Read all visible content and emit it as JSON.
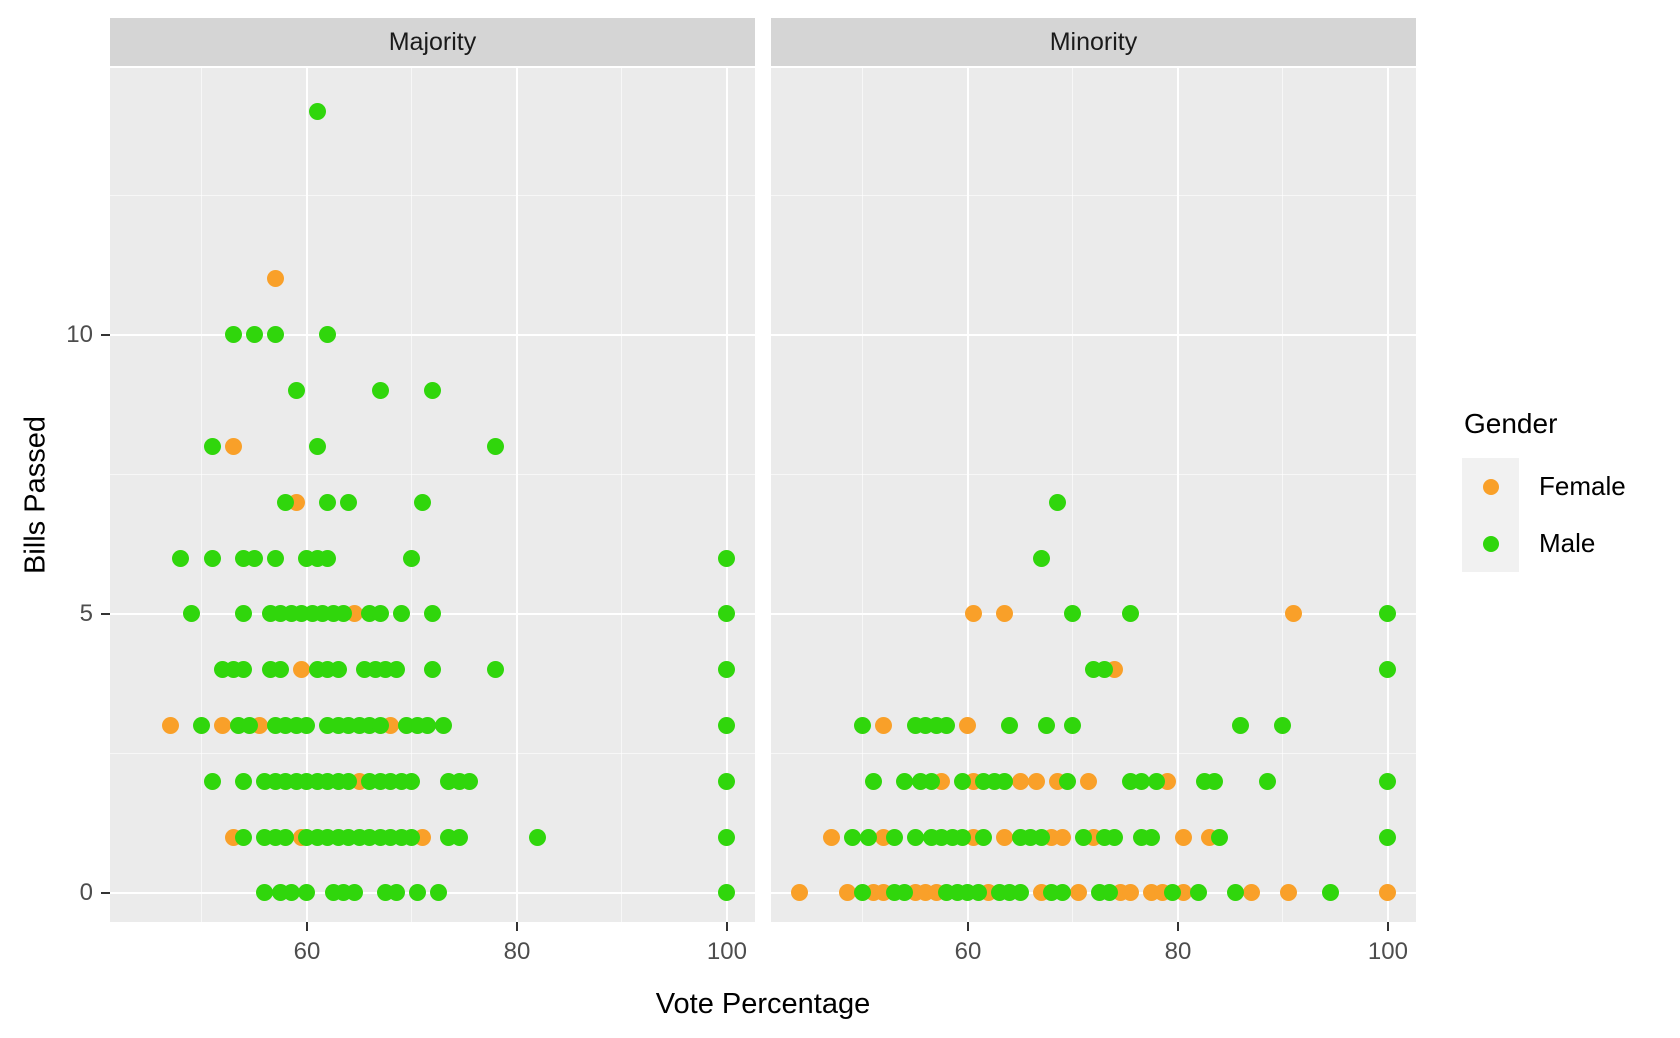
{
  "figure": {
    "x_axis_title": "Vote Percentage",
    "y_axis_title": "Bills Passed",
    "facets": [
      "Majority",
      "Minority"
    ],
    "legend": {
      "title": "Gender",
      "entries": [
        {
          "label": "Female",
          "color": "#f9a029"
        },
        {
          "label": "Male",
          "color": "#30d60c"
        }
      ]
    },
    "colors": {
      "panel_background": "#ebebeb",
      "strip_background": "#d5d5d5",
      "gridline": "#ffffff",
      "axis_text": "#4d4d4d"
    }
  },
  "chart_data": {
    "type": "scatter",
    "title": "",
    "xlabel": "Vote Percentage",
    "ylabel": "Bills Passed",
    "facet_labels": [
      "Majority",
      "Minority"
    ],
    "legend_title": "Gender",
    "legend_position": "right",
    "grid": true,
    "xlim": [
      41.24,
      102.67
    ],
    "ylim": [
      -0.52,
      14.78
    ],
    "x_breaks": [
      60,
      80,
      100
    ],
    "x_minor_breaks": [
      50,
      70,
      90
    ],
    "y_breaks": [
      0,
      5,
      10
    ],
    "y_minor_breaks": [
      2.5,
      7.5,
      12.5
    ],
    "series": [
      {
        "facet": "Majority",
        "gender": "Female",
        "points": [
          [
            57,
            11
          ],
          [
            53,
            8
          ],
          [
            59,
            7
          ],
          [
            64.5,
            5
          ],
          [
            59.5,
            4
          ],
          [
            47,
            3
          ],
          [
            52,
            3
          ],
          [
            55.5,
            3
          ],
          [
            68,
            3
          ],
          [
            65,
            2
          ],
          [
            53,
            1
          ],
          [
            59.5,
            1
          ],
          [
            71,
            1
          ]
        ]
      },
      {
        "facet": "Majority",
        "gender": "Male",
        "points": [
          [
            61,
            14
          ],
          [
            53,
            10
          ],
          [
            55,
            10
          ],
          [
            57,
            10
          ],
          [
            62,
            10
          ],
          [
            59,
            9
          ],
          [
            67,
            9
          ],
          [
            72,
            9
          ],
          [
            51,
            8
          ],
          [
            61,
            8
          ],
          [
            78,
            8
          ],
          [
            58,
            7
          ],
          [
            62,
            7
          ],
          [
            64,
            7
          ],
          [
            71,
            7
          ],
          [
            48,
            6
          ],
          [
            51,
            6
          ],
          [
            54,
            6
          ],
          [
            55,
            6
          ],
          [
            57,
            6
          ],
          [
            60,
            6
          ],
          [
            61,
            6
          ],
          [
            62,
            6
          ],
          [
            70,
            6
          ],
          [
            100,
            6
          ],
          [
            49,
            5
          ],
          [
            54,
            5
          ],
          [
            56.5,
            5
          ],
          [
            57.5,
            5
          ],
          [
            58.5,
            5
          ],
          [
            59.5,
            5
          ],
          [
            60.5,
            5
          ],
          [
            61.5,
            5
          ],
          [
            62.5,
            5
          ],
          [
            63.5,
            5
          ],
          [
            66,
            5
          ],
          [
            67,
            5
          ],
          [
            69,
            5
          ],
          [
            72,
            5
          ],
          [
            100,
            5
          ],
          [
            52,
            4
          ],
          [
            53,
            4
          ],
          [
            54,
            4
          ],
          [
            56.5,
            4
          ],
          [
            57.5,
            4
          ],
          [
            61,
            4
          ],
          [
            62,
            4
          ],
          [
            63,
            4
          ],
          [
            65.5,
            4
          ],
          [
            66.5,
            4
          ],
          [
            67.5,
            4
          ],
          [
            68.5,
            4
          ],
          [
            72,
            4
          ],
          [
            78,
            4
          ],
          [
            100,
            4
          ],
          [
            50,
            3
          ],
          [
            53.5,
            3
          ],
          [
            54.5,
            3
          ],
          [
            57,
            3
          ],
          [
            58,
            3
          ],
          [
            59,
            3
          ],
          [
            60,
            3
          ],
          [
            62,
            3
          ],
          [
            63,
            3
          ],
          [
            64,
            3
          ],
          [
            65,
            3
          ],
          [
            66,
            3
          ],
          [
            67,
            3
          ],
          [
            69.5,
            3
          ],
          [
            70.5,
            3
          ],
          [
            71.5,
            3
          ],
          [
            73,
            3
          ],
          [
            100,
            3
          ],
          [
            51,
            2
          ],
          [
            54,
            2
          ],
          [
            56,
            2
          ],
          [
            57,
            2
          ],
          [
            58,
            2
          ],
          [
            59,
            2
          ],
          [
            60,
            2
          ],
          [
            61,
            2
          ],
          [
            62,
            2
          ],
          [
            63,
            2
          ],
          [
            64,
            2
          ],
          [
            66,
            2
          ],
          [
            67,
            2
          ],
          [
            68,
            2
          ],
          [
            69,
            2
          ],
          [
            70,
            2
          ],
          [
            73.5,
            2
          ],
          [
            74.5,
            2
          ],
          [
            75.5,
            2
          ],
          [
            100,
            2
          ],
          [
            54,
            1
          ],
          [
            56,
            1
          ],
          [
            57,
            1
          ],
          [
            58,
            1
          ],
          [
            60,
            1
          ],
          [
            61,
            1
          ],
          [
            62,
            1
          ],
          [
            63,
            1
          ],
          [
            64,
            1
          ],
          [
            65,
            1
          ],
          [
            66,
            1
          ],
          [
            67,
            1
          ],
          [
            68,
            1
          ],
          [
            69,
            1
          ],
          [
            70,
            1
          ],
          [
            73.5,
            1
          ],
          [
            74.5,
            1
          ],
          [
            82,
            1
          ],
          [
            100,
            1
          ],
          [
            56,
            0
          ],
          [
            57.5,
            0
          ],
          [
            58.5,
            0
          ],
          [
            60,
            0
          ],
          [
            62.5,
            0
          ],
          [
            63.5,
            0
          ],
          [
            64.5,
            0
          ],
          [
            67.5,
            0
          ],
          [
            68.5,
            0
          ],
          [
            70.5,
            0
          ],
          [
            72.5,
            0
          ],
          [
            100,
            0
          ]
        ]
      },
      {
        "facet": "Minority",
        "gender": "Female",
        "points": [
          [
            60.5,
            5
          ],
          [
            63.5,
            5
          ],
          [
            91,
            5
          ],
          [
            74,
            4
          ],
          [
            52,
            3
          ],
          [
            60,
            3
          ],
          [
            57.5,
            2
          ],
          [
            60.5,
            2
          ],
          [
            65,
            2
          ],
          [
            66.5,
            2
          ],
          [
            68.5,
            2
          ],
          [
            71.5,
            2
          ],
          [
            79,
            2
          ],
          [
            47,
            1
          ],
          [
            52,
            1
          ],
          [
            60.5,
            1
          ],
          [
            63.5,
            1
          ],
          [
            68,
            1
          ],
          [
            69,
            1
          ],
          [
            72,
            1
          ],
          [
            80.5,
            1
          ],
          [
            83,
            1
          ],
          [
            44,
            0
          ],
          [
            48.5,
            0
          ],
          [
            51,
            0
          ],
          [
            52,
            0
          ],
          [
            55,
            0
          ],
          [
            56,
            0
          ],
          [
            57,
            0
          ],
          [
            62,
            0
          ],
          [
            67,
            0
          ],
          [
            70.5,
            0
          ],
          [
            74.5,
            0
          ],
          [
            75.5,
            0
          ],
          [
            77.5,
            0
          ],
          [
            78.5,
            0
          ],
          [
            80.5,
            0
          ],
          [
            87,
            0
          ],
          [
            90.5,
            0
          ],
          [
            100,
            0
          ]
        ]
      },
      {
        "facet": "Minority",
        "gender": "Male",
        "points": [
          [
            68.5,
            7
          ],
          [
            67,
            6
          ],
          [
            70,
            5
          ],
          [
            75.5,
            5
          ],
          [
            100,
            5
          ],
          [
            72,
            4
          ],
          [
            73,
            4
          ],
          [
            100,
            4
          ],
          [
            50,
            3
          ],
          [
            55,
            3
          ],
          [
            56,
            3
          ],
          [
            57,
            3
          ],
          [
            58,
            3
          ],
          [
            64,
            3
          ],
          [
            67.5,
            3
          ],
          [
            70,
            3
          ],
          [
            86,
            3
          ],
          [
            90,
            3
          ],
          [
            51,
            2
          ],
          [
            54,
            2
          ],
          [
            55.5,
            2
          ],
          [
            56.5,
            2
          ],
          [
            59.5,
            2
          ],
          [
            61.5,
            2
          ],
          [
            62.5,
            2
          ],
          [
            63.5,
            2
          ],
          [
            69.5,
            2
          ],
          [
            75.5,
            2
          ],
          [
            76.5,
            2
          ],
          [
            78,
            2
          ],
          [
            82.5,
            2
          ],
          [
            83.5,
            2
          ],
          [
            88.5,
            2
          ],
          [
            100,
            2
          ],
          [
            49,
            1
          ],
          [
            50.5,
            1
          ],
          [
            53,
            1
          ],
          [
            55,
            1
          ],
          [
            56.5,
            1
          ],
          [
            57.5,
            1
          ],
          [
            58.5,
            1
          ],
          [
            59.5,
            1
          ],
          [
            61.5,
            1
          ],
          [
            65,
            1
          ],
          [
            66,
            1
          ],
          [
            67,
            1
          ],
          [
            71,
            1
          ],
          [
            73,
            1
          ],
          [
            74,
            1
          ],
          [
            76.5,
            1
          ],
          [
            77.5,
            1
          ],
          [
            84,
            1
          ],
          [
            100,
            1
          ],
          [
            50,
            0
          ],
          [
            53,
            0
          ],
          [
            54,
            0
          ],
          [
            58,
            0
          ],
          [
            59,
            0
          ],
          [
            60,
            0
          ],
          [
            61,
            0
          ],
          [
            63,
            0
          ],
          [
            64,
            0
          ],
          [
            65,
            0
          ],
          [
            68,
            0
          ],
          [
            69,
            0
          ],
          [
            72.5,
            0
          ],
          [
            73.5,
            0
          ],
          [
            79.5,
            0
          ],
          [
            82,
            0
          ],
          [
            85.5,
            0
          ],
          [
            94.5,
            0
          ]
        ]
      }
    ]
  }
}
